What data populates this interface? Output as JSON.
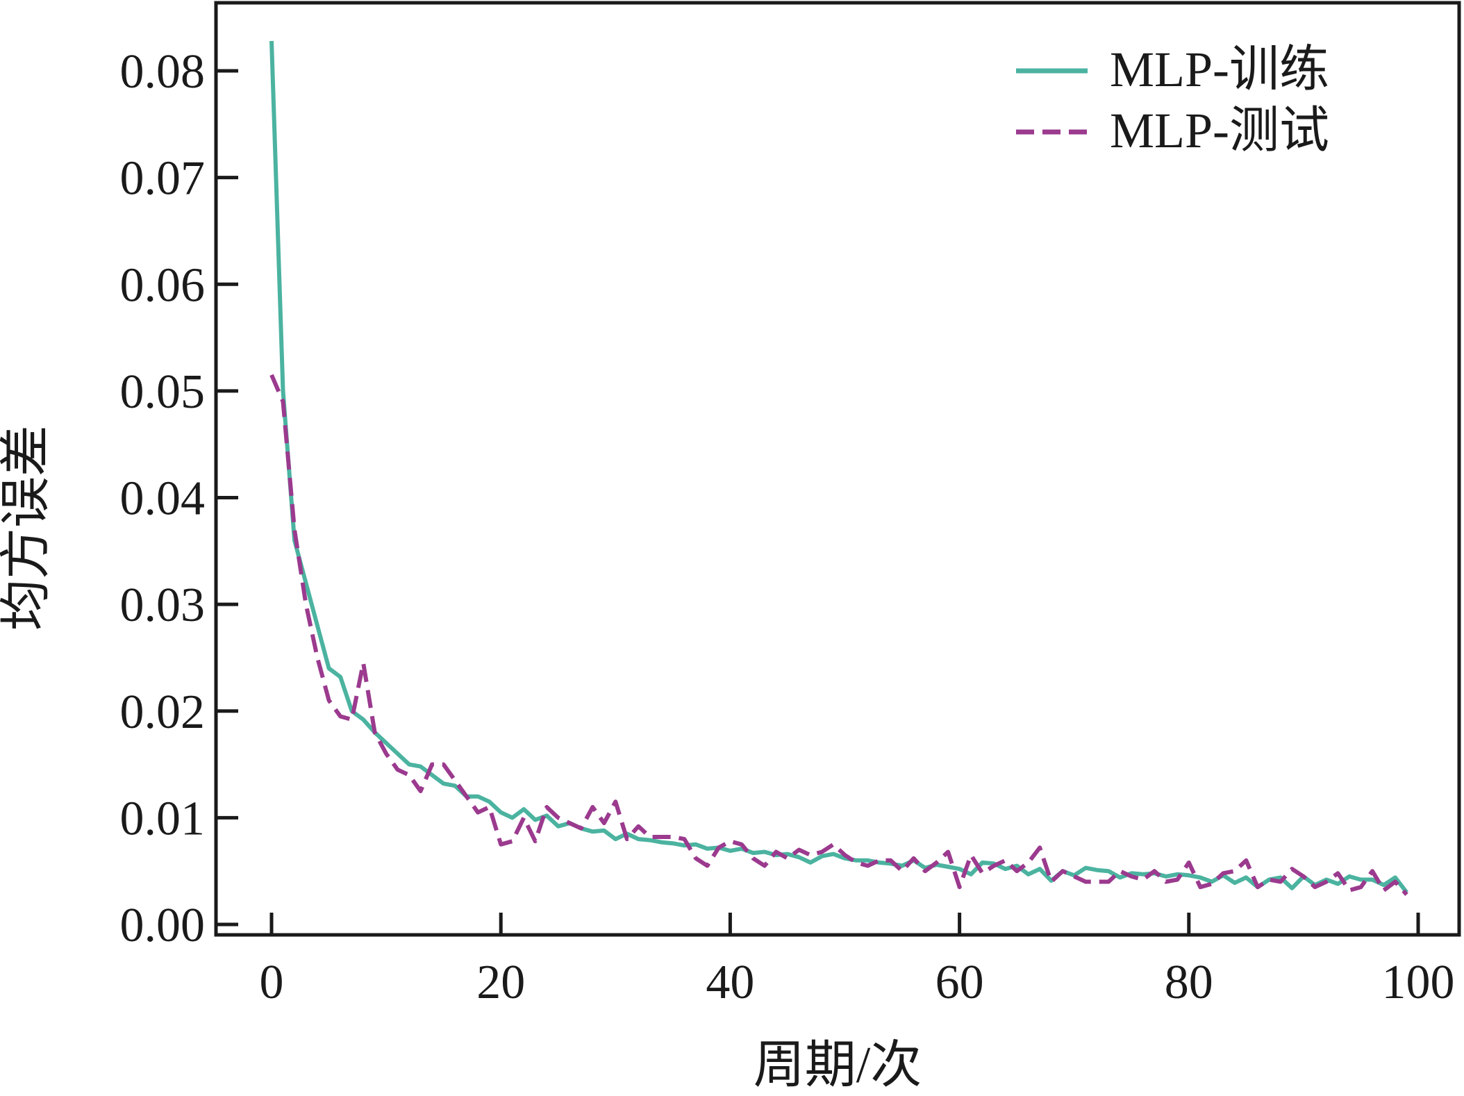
{
  "chart_data": {
    "type": "line",
    "title": "",
    "xlabel": "周期/次",
    "ylabel": "均方误差",
    "xlim": [
      -4,
      103
    ],
    "ylim": [
      -0.0012,
      0.0865
    ],
    "xticks": [
      0,
      20,
      40,
      60,
      80,
      100
    ],
    "xtick_labels": [
      "0",
      "20",
      "40",
      "60",
      "80",
      "100"
    ],
    "yticks": [
      0,
      0.01,
      0.02,
      0.03,
      0.04,
      0.05,
      0.06,
      0.07,
      0.08
    ],
    "ytick_labels": [
      "0.00",
      "0.01",
      "0.02",
      "0.03",
      "0.04",
      "0.05",
      "0.06",
      "0.07",
      "0.08"
    ],
    "grid": false,
    "legend_position": "top-right",
    "series": [
      {
        "name": "MLP-训练",
        "style": "solid",
        "color": "#4bb3a0",
        "x_start": 0,
        "values": [
          0.0828,
          0.05,
          0.036,
          0.032,
          0.028,
          0.024,
          0.0232,
          0.02,
          0.0192,
          0.018,
          0.017,
          0.016,
          0.015,
          0.0148,
          0.014,
          0.0132,
          0.013,
          0.012,
          0.012,
          0.0115,
          0.0105,
          0.01,
          0.0108,
          0.0098,
          0.0102,
          0.0092,
          0.0095,
          0.009,
          0.0087,
          0.0088,
          0.008,
          0.0085,
          0.008,
          0.0079,
          0.0077,
          0.0076,
          0.0074,
          0.0075,
          0.0071,
          0.0072,
          0.0069,
          0.0071,
          0.0067,
          0.0068,
          0.0065,
          0.0066,
          0.0063,
          0.0058,
          0.0064,
          0.0066,
          0.0062,
          0.006,
          0.006,
          0.0058,
          0.0057,
          0.0055,
          0.006,
          0.0053,
          0.0056,
          0.0054,
          0.0052,
          0.0047,
          0.0058,
          0.0057,
          0.0052,
          0.0055,
          0.0047,
          0.0052,
          0.0041,
          0.005,
          0.0046,
          0.0053,
          0.0051,
          0.005,
          0.0044,
          0.0048,
          0.0047,
          0.0048,
          0.0045,
          0.0047,
          0.0046,
          0.0044,
          0.004,
          0.0046,
          0.0039,
          0.0044,
          0.0035,
          0.0042,
          0.0044,
          0.0034,
          0.0045,
          0.0037,
          0.0042,
          0.0038,
          0.0045,
          0.0042,
          0.0042,
          0.0037,
          0.0044,
          0.003
        ]
      },
      {
        "name": "MLP-测试",
        "style": "dashed",
        "color": "#9b3a8e",
        "x_start": 0,
        "values": [
          0.0515,
          0.049,
          0.037,
          0.03,
          0.025,
          0.021,
          0.0195,
          0.0192,
          0.0245,
          0.018,
          0.016,
          0.0145,
          0.014,
          0.0125,
          0.015,
          0.015,
          0.0135,
          0.012,
          0.0105,
          0.011,
          0.0075,
          0.0078,
          0.01,
          0.0078,
          0.011,
          0.01,
          0.0095,
          0.009,
          0.011,
          0.0095,
          0.0115,
          0.008,
          0.0092,
          0.0082,
          0.0082,
          0.0082,
          0.008,
          0.0062,
          0.0055,
          0.0072,
          0.0078,
          0.0075,
          0.0062,
          0.0055,
          0.0068,
          0.0062,
          0.007,
          0.0065,
          0.0068,
          0.0075,
          0.0065,
          0.0058,
          0.0055,
          0.006,
          0.006,
          0.005,
          0.0062,
          0.005,
          0.0058,
          0.0068,
          0.0035,
          0.0065,
          0.0048,
          0.0055,
          0.006,
          0.005,
          0.0058,
          0.0072,
          0.004,
          0.005,
          0.0045,
          0.004,
          0.004,
          0.004,
          0.005,
          0.0045,
          0.0042,
          0.005,
          0.004,
          0.0042,
          0.0058,
          0.0035,
          0.0038,
          0.0048,
          0.005,
          0.006,
          0.0035,
          0.0042,
          0.004,
          0.0052,
          0.0045,
          0.0035,
          0.004,
          0.0048,
          0.0032,
          0.0035,
          0.005,
          0.0032,
          0.004,
          0.0028
        ]
      }
    ]
  }
}
